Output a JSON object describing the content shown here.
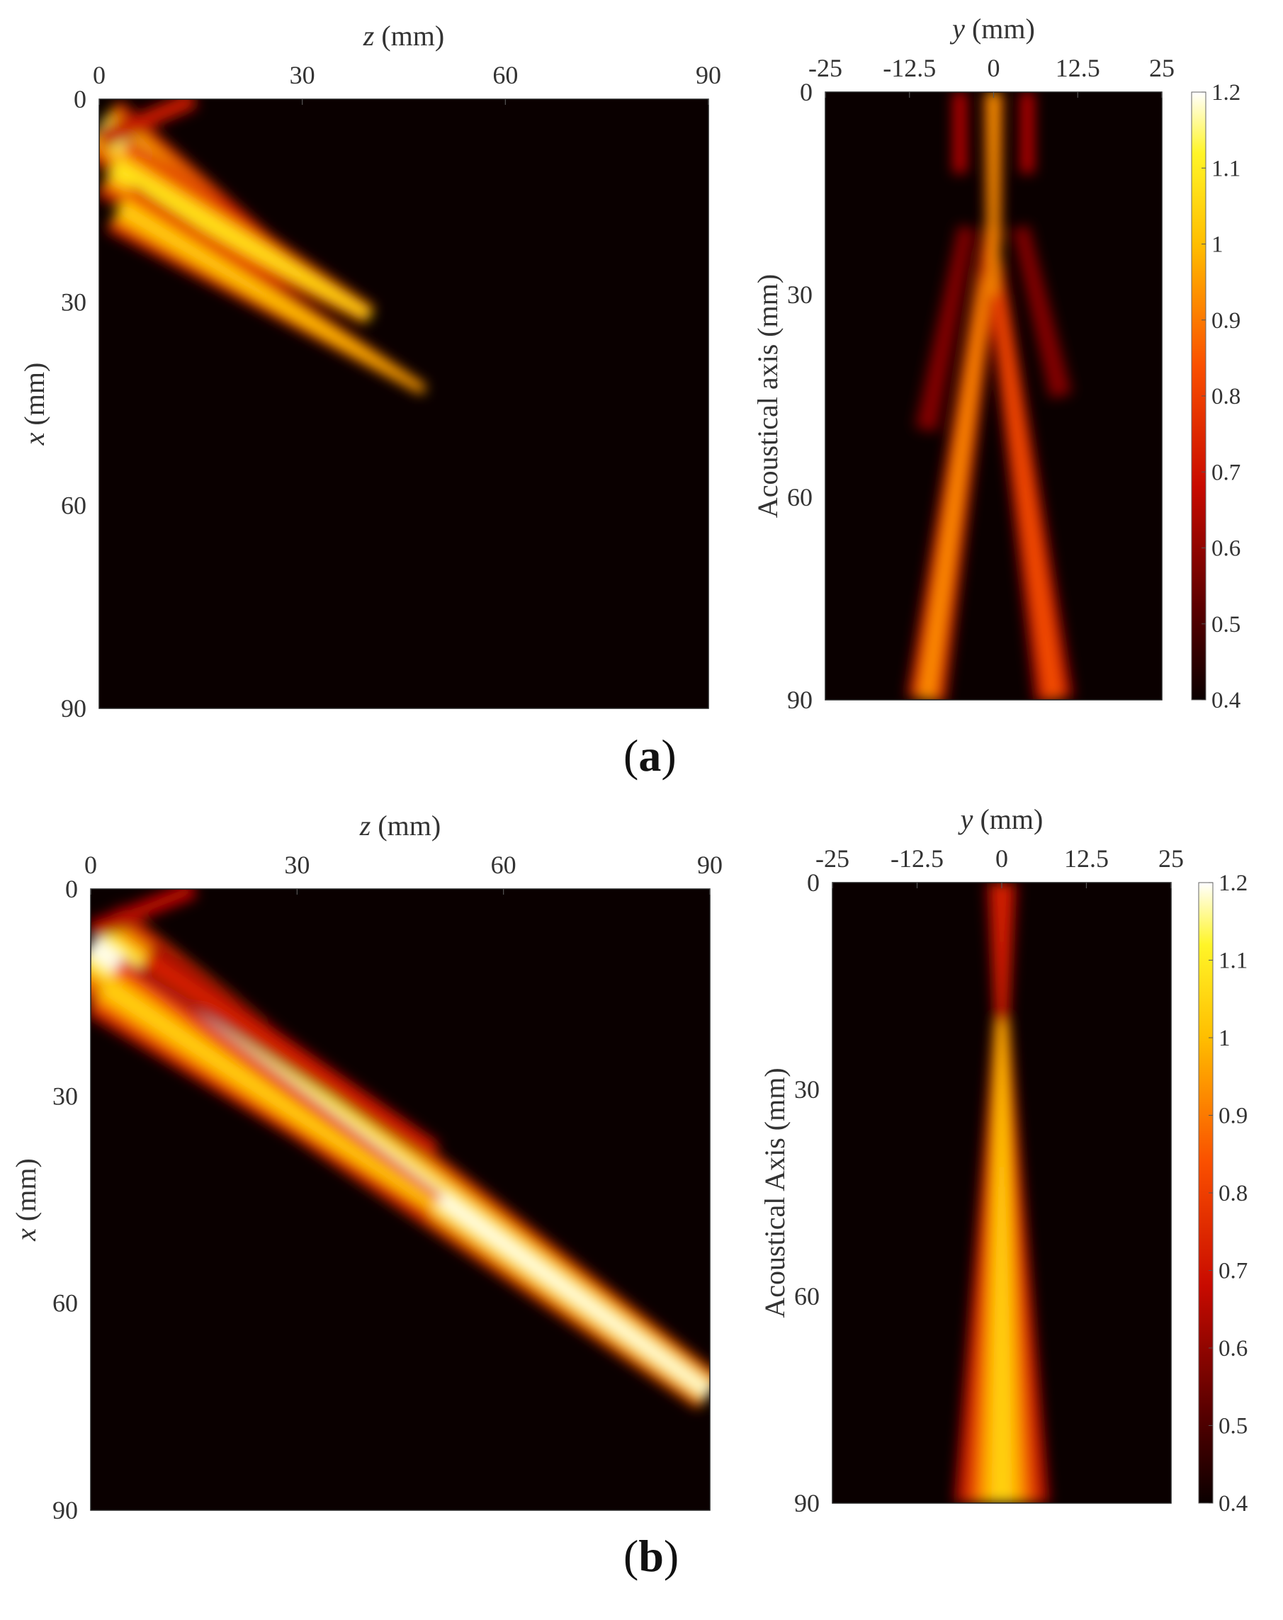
{
  "panels": [
    {
      "id": "a",
      "label_open": "(",
      "label_letter": "a",
      "label_close": ")"
    },
    {
      "id": "b",
      "label_open": "(",
      "label_letter": "b",
      "label_close": ")"
    }
  ],
  "chart_data": [
    {
      "type": "heatmap",
      "panel": "a",
      "plot": "left",
      "xlabel_var": "z",
      "xlabel_unit": " (mm)",
      "ylabel_var": "x",
      "ylabel_unit": " (mm)",
      "x_ticks": [
        "0",
        "30",
        "60",
        "90"
      ],
      "y_ticks": [
        "0",
        "30",
        "60",
        "90"
      ],
      "xlim": [
        0,
        90
      ],
      "ylim": [
        0,
        90
      ],
      "x_axis_position": "top",
      "background_color": "#0a0000",
      "beams": [
        {
          "z0": 0,
          "x0": 4,
          "z1": 26,
          "x1": 24,
          "w0": 5,
          "w1": 2.5,
          "peak": 1.15
        },
        {
          "z0": 2,
          "x0": 10,
          "z1": 40,
          "x1": 32,
          "w0": 5,
          "w1": 1.5,
          "peak": 1.1
        },
        {
          "z0": 3,
          "x0": 16,
          "z1": 48,
          "x1": 43,
          "w0": 4,
          "w1": 0.8,
          "peak": 1.05
        },
        {
          "z0": 0,
          "x0": 6,
          "z1": 14,
          "x1": 0,
          "w0": 1.5,
          "w1": 1.5,
          "peak": 0.75
        }
      ]
    },
    {
      "type": "heatmap",
      "panel": "a",
      "plot": "right",
      "xlabel_var": "y",
      "xlabel_unit": " (mm)",
      "ylabel": "Acoustical axis (mm)",
      "x_ticks": [
        "-25",
        "-12.5",
        "0",
        "12.5",
        "25"
      ],
      "y_ticks": [
        "0",
        "30",
        "60",
        "90"
      ],
      "xlim": [
        -25,
        25
      ],
      "ylim": [
        0,
        90
      ],
      "x_axis_position": "top",
      "background_color": "#0a0000",
      "colorbar": {
        "min": 0.4,
        "max": 1.2,
        "ticks": [
          "0.4",
          "0.5",
          "0.6",
          "0.7",
          "0.8",
          "0.9",
          "1",
          "1.1",
          "1.2"
        ]
      },
      "beams": [
        {
          "z0": 20,
          "x0": 0,
          "z1": 90,
          "x1": -10,
          "w0": 1.5,
          "w1": 3,
          "peak": 0.95
        },
        {
          "z0": 25,
          "x0": 0,
          "z1": 90,
          "x1": 9,
          "w0": 1.5,
          "w1": 3,
          "peak": 0.85
        },
        {
          "z0": 0,
          "x0": 0,
          "z1": 30,
          "x1": 0,
          "w0": 1.5,
          "w1": 1,
          "peak": 1.0
        },
        {
          "z0": 0,
          "x0": -5,
          "z1": 12,
          "x1": -5,
          "w0": 1.2,
          "w1": 1.2,
          "peak": 0.7
        },
        {
          "z0": 0,
          "x0": 5,
          "z1": 12,
          "x1": 5,
          "w0": 1.2,
          "w1": 1.2,
          "peak": 0.7
        },
        {
          "z0": 20,
          "x0": -4,
          "z1": 50,
          "x1": -10,
          "w0": 1.5,
          "w1": 2,
          "peak": 0.6
        },
        {
          "z0": 20,
          "x0": 4,
          "z1": 45,
          "x1": 10,
          "w0": 1.5,
          "w1": 2,
          "peak": 0.6
        }
      ]
    },
    {
      "type": "heatmap",
      "panel": "b",
      "plot": "left",
      "xlabel_var": "z",
      "xlabel_unit": " (mm)",
      "ylabel_var": "x",
      "ylabel_unit": " (mm)",
      "x_ticks": [
        "0",
        "30",
        "60",
        "90"
      ],
      "y_ticks": [
        "0",
        "30",
        "60",
        "90"
      ],
      "xlim": [
        0,
        90
      ],
      "ylim": [
        0,
        90
      ],
      "x_axis_position": "top",
      "background_color": "#0a0000",
      "beams": [
        {
          "z0": 0,
          "x0": 8,
          "z1": 90,
          "x1": 73,
          "w0": 7,
          "w1": 3,
          "peak": 1.2
        },
        {
          "z0": 2,
          "x0": 14,
          "z1": 50,
          "x1": 46,
          "w0": 5,
          "w1": 2,
          "peak": 1.05
        },
        {
          "z0": 8,
          "x0": 10,
          "z1": 50,
          "x1": 38,
          "w0": 2.5,
          "w1": 1.5,
          "peak": 0.75
        },
        {
          "z0": 0,
          "x0": 6,
          "z1": 15,
          "x1": 0,
          "w0": 1.5,
          "w1": 1.5,
          "peak": 0.7
        }
      ]
    },
    {
      "type": "heatmap",
      "panel": "b",
      "plot": "right",
      "xlabel_var": "y",
      "xlabel_unit": " (mm)",
      "ylabel": "Acoustical Axis (mm)",
      "x_ticks": [
        "-25",
        "-12.5",
        "0",
        "12.5",
        "25"
      ],
      "y_ticks": [
        "0",
        "30",
        "60",
        "90"
      ],
      "xlim": [
        -25,
        25
      ],
      "ylim": [
        0,
        90
      ],
      "x_axis_position": "top",
      "background_color": "#0a0000",
      "colorbar": {
        "min": 0.4,
        "max": 1.2,
        "ticks": [
          "0.4",
          "0.5",
          "0.6",
          "0.7",
          "0.8",
          "0.9",
          "1",
          "1.1",
          "1.2"
        ]
      },
      "beams": [
        {
          "z0": 0,
          "x0": 0,
          "z1": 20,
          "x1": 0,
          "w0": 2.5,
          "w1": 1.2,
          "peak": 0.75
        },
        {
          "z0": 20,
          "x0": 0,
          "z1": 90,
          "x1": 0,
          "w0": 1.2,
          "w1": 7,
          "peak": 1.05
        }
      ]
    }
  ]
}
